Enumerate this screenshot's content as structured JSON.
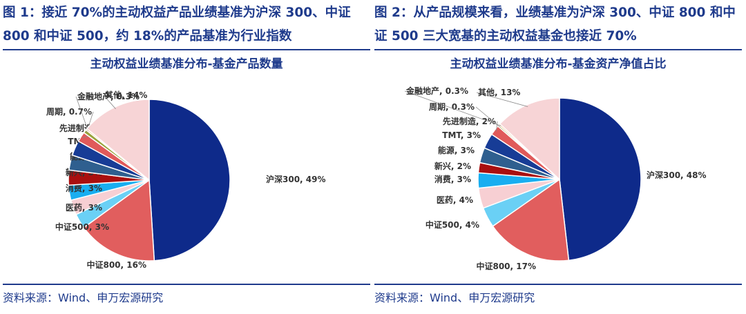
{
  "panels": [
    {
      "figure_title": "图 1：接近 70%的主动权益产品业绩基准为沪深 300、中证 800 和中证 500，约 18%的产品基准为行业指数",
      "source": "资料来源：Wind、申万宏源研究"
    },
    {
      "figure_title": "图 2：从产品规模来看，业绩基准为沪深 300、中证 800 和中证 500 三大宽基的主动权益基金也接近 70%",
      "source": "资料来源：Wind、申万宏源研究"
    }
  ],
  "chart_data": [
    {
      "type": "pie",
      "title": "主动权益业绩基准分布-基金产品数量",
      "slices": [
        {
          "name": "沪深300",
          "value": 49,
          "label": "沪深300, 49%",
          "color": "#0e2a8a"
        },
        {
          "name": "中证800",
          "value": 16,
          "label": "中证800, 16%",
          "color": "#e15e5e"
        },
        {
          "name": "中证500",
          "value": 3,
          "label": "中证500, 3%",
          "color": "#6ad0f5"
        },
        {
          "name": "医药",
          "value": 3,
          "label": "医药, 3%",
          "color": "#f7cfd3"
        },
        {
          "name": "消费",
          "value": 3,
          "label": "消费, 3%",
          "color": "#19aef0"
        },
        {
          "name": "新兴",
          "value": 3,
          "label": "新兴, 3%",
          "color": "#a90f0f"
        },
        {
          "name": "能源",
          "value": 3,
          "label": "能源, 3%",
          "color": "#2f5f8f"
        },
        {
          "name": "TMT",
          "value": 3,
          "label": "TMT, 3%",
          "color": "#173c96"
        },
        {
          "name": "先进制造",
          "value": 2,
          "label": "先进制造, 2%",
          "color": "#e05a5a"
        },
        {
          "name": "周期",
          "value": 0.7,
          "label": "周期, 0.7%",
          "color": "#9aa33c"
        },
        {
          "name": "金融地产",
          "value": 0.3,
          "label": "金融地产, 0.3%",
          "color": "#f2b98a"
        },
        {
          "name": "其他",
          "value": 14,
          "label": "其他, 14%",
          "color": "#f7d4d6"
        }
      ]
    },
    {
      "type": "pie",
      "title": "主动权益业绩基准分布-基金资产净值占比",
      "slices": [
        {
          "name": "沪深300",
          "value": 48,
          "label": "沪深300, 48%",
          "color": "#0e2a8a"
        },
        {
          "name": "中证800",
          "value": 17,
          "label": "中证800, 17%",
          "color": "#e15e5e"
        },
        {
          "name": "中证500",
          "value": 4,
          "label": "中证500, 4%",
          "color": "#6ad0f5"
        },
        {
          "name": "医药",
          "value": 4,
          "label": "医药, 4%",
          "color": "#f7cfd3"
        },
        {
          "name": "消费",
          "value": 3,
          "label": "消费, 3%",
          "color": "#19aef0"
        },
        {
          "name": "新兴",
          "value": 2,
          "label": "新兴, 2%",
          "color": "#a90f0f"
        },
        {
          "name": "能源",
          "value": 3,
          "label": "能源, 3%",
          "color": "#2f5f8f"
        },
        {
          "name": "TMT",
          "value": 3,
          "label": "TMT, 3%",
          "color": "#173c96"
        },
        {
          "name": "先进制造",
          "value": 2,
          "label": "先进制造, 2%",
          "color": "#e05a5a"
        },
        {
          "name": "周期",
          "value": 0.3,
          "label": "周期, 0.3%",
          "color": "#9aa33c"
        },
        {
          "name": "金融地产",
          "value": 0.3,
          "label": "金融地产, 0.3%",
          "color": "#f2b98a"
        },
        {
          "name": "其他",
          "value": 13,
          "label": "其他, 13%",
          "color": "#f7d4d6"
        }
      ]
    }
  ]
}
